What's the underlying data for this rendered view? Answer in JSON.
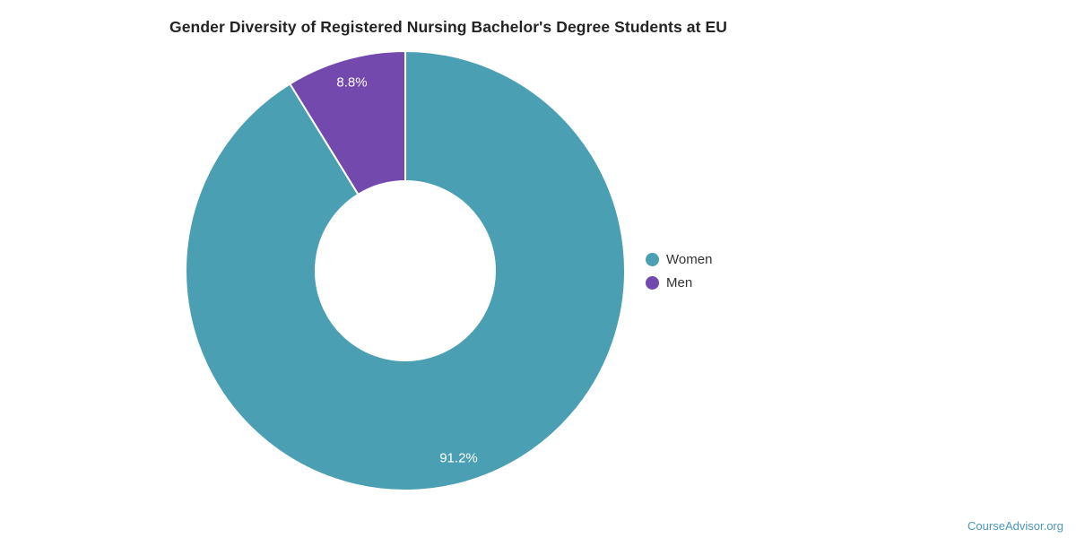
{
  "title": "Gender Diversity of Registered Nursing Bachelor's Degree Students at EU",
  "footer": {
    "text": "CourseAdvisor.org",
    "color": "#4896bc"
  },
  "chart_data": {
    "type": "pie",
    "subtype": "donut",
    "title": "Gender Diversity of Registered Nursing Bachelor's Degree Students at EU",
    "series": [
      {
        "name": "Women",
        "value": 91.2,
        "label": "91.2%",
        "color": "#4aa0b2"
      },
      {
        "name": "Men",
        "value": 8.8,
        "label": "8.8%",
        "color": "#7349ae"
      }
    ],
    "start_angle_deg": 0,
    "direction": "clockwise",
    "inner_radius_ratio": 0.41,
    "slice_label_color": "#ffffff",
    "slice_border_color": "#ffffff",
    "legend_position": "right",
    "legend": [
      {
        "label": "Women",
        "color": "#4aa0b2"
      },
      {
        "label": "Men",
        "color": "#7349ae"
      }
    ]
  }
}
